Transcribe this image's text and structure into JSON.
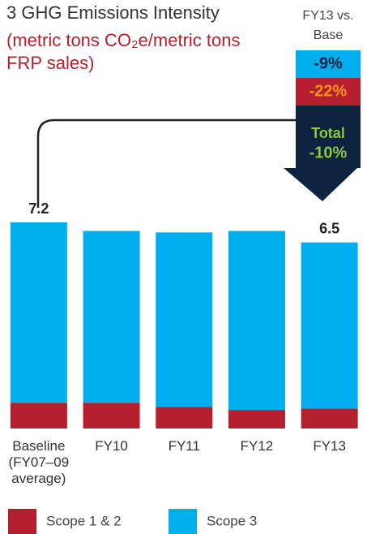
{
  "chart_data": {
    "type": "stacked_bar",
    "title": "3 GHG Emissions Intensity",
    "subtitle": "(metric tons CO₂e/metric tons FRP sales)",
    "categories": [
      "Baseline\n(FY07–09\naverage)",
      "FY10",
      "FY11",
      "FY12",
      "FY13"
    ],
    "series": [
      {
        "name": "Scope 1 & 2",
        "color": "#b5202e",
        "values": [
          0.9,
          0.9,
          0.75,
          0.65,
          0.7
        ]
      },
      {
        "name": "Scope 3",
        "color": "#00aeef",
        "values": [
          6.3,
          6.0,
          6.1,
          6.25,
          5.8
        ]
      }
    ],
    "total_labels": [
      "7.2",
      null,
      null,
      null,
      "6.5"
    ],
    "ylim": [
      0,
      7.2
    ],
    "annotation": {
      "heading": "FY13 vs.\nBase",
      "scope3_change": "-9%",
      "scope12_change": "-22%",
      "total_heading": "Total",
      "total_change": "-10%"
    }
  }
}
